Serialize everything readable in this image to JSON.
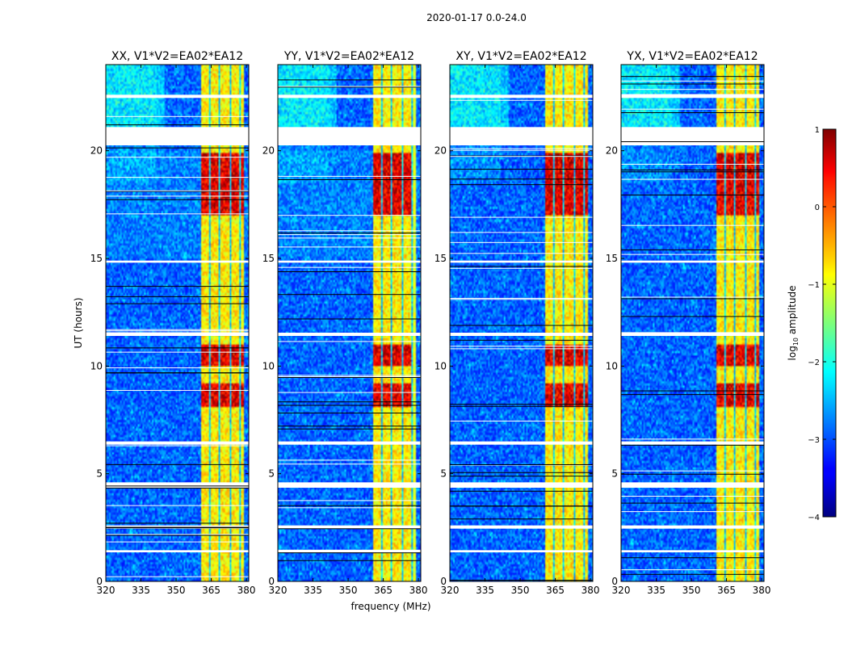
{
  "figure": {
    "title": "2020-01-17 0.0-24.0"
  },
  "colors": {
    "background": "#ffffff",
    "axis": "#000000",
    "gap": "#ffffff",
    "flag_line": "#000000"
  },
  "chart_data": {
    "type": "heatmap",
    "xlabel": "frequency (MHz)",
    "ylabel": "UT (hours)",
    "xlim": [
      320,
      381
    ],
    "ylim": [
      0,
      24
    ],
    "xticks": [
      320,
      335,
      350,
      365,
      380
    ],
    "yticks": [
      0,
      5,
      10,
      15,
      20
    ],
    "colorbar": {
      "label": "log10 amplitude",
      "label_main": "log",
      "label_sub": "10",
      "label_rest": " amplitude",
      "range": [
        -4,
        1
      ],
      "ticks": [
        "1",
        "0",
        "−1",
        "−2",
        "−3",
        "−4"
      ],
      "tick_values": [
        1,
        0,
        -1,
        -2,
        -3,
        -4
      ],
      "colormap": "jet"
    },
    "panels": [
      {
        "title": "XX, V1*V2=EA02*EA12",
        "pol": "XX"
      },
      {
        "title": "YY, V1*V2=EA02*EA12",
        "pol": "YY"
      },
      {
        "title": "XY, V1*V2=EA02*EA12",
        "pol": "XY"
      },
      {
        "title": "YX, V1*V2=EA02*EA12",
        "pol": "YX"
      }
    ],
    "bright_band_mhz": [
      361,
      379
    ],
    "band_subcolumns_mhz": [
      [
        361,
        364
      ],
      [
        364.5,
        368.2
      ],
      [
        368.8,
        373
      ],
      [
        373.5,
        377.2
      ],
      [
        377.8,
        379
      ]
    ],
    "gaps_hours": [
      [
        20.25,
        21.1
      ],
      [
        22.45,
        22.6
      ],
      [
        1.35,
        1.45
      ],
      [
        2.45,
        2.6
      ],
      [
        4.35,
        4.6
      ],
      [
        6.35,
        6.5
      ],
      [
        14.8,
        14.9
      ],
      [
        11.4,
        11.55
      ]
    ],
    "strong_rfi_hours": [
      [
        17.0,
        19.9
      ],
      [
        8.1,
        9.2
      ],
      [
        10.0,
        11.0
      ]
    ]
  }
}
